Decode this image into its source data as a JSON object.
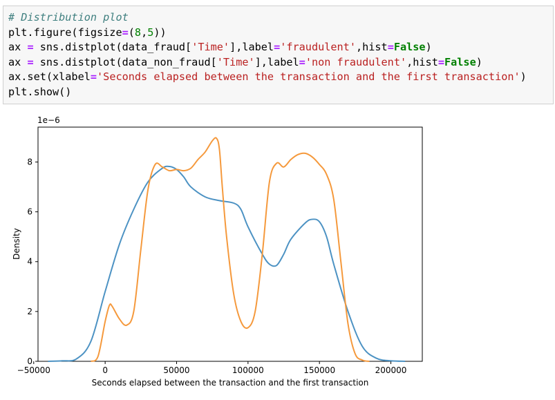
{
  "code_cell": {
    "lines": [
      [
        {
          "t": "# Distribution plot",
          "c": "comment"
        }
      ],
      [
        {
          "t": "plt.figure(figsize",
          "c": "plain"
        },
        {
          "t": "=",
          "c": "op"
        },
        {
          "t": "(",
          "c": "plain"
        },
        {
          "t": "8",
          "c": "num"
        },
        {
          "t": ",",
          "c": "plain"
        },
        {
          "t": "5",
          "c": "num"
        },
        {
          "t": "))",
          "c": "plain"
        }
      ],
      [
        {
          "t": "ax ",
          "c": "plain"
        },
        {
          "t": "=",
          "c": "op"
        },
        {
          "t": " sns.distplot(data_fraud[",
          "c": "plain"
        },
        {
          "t": "'Time'",
          "c": "str"
        },
        {
          "t": "],label",
          "c": "plain"
        },
        {
          "t": "=",
          "c": "op"
        },
        {
          "t": "'fraudulent'",
          "c": "str"
        },
        {
          "t": ",hist",
          "c": "plain"
        },
        {
          "t": "=",
          "c": "op"
        },
        {
          "t": "False",
          "c": "kw"
        },
        {
          "t": ")",
          "c": "plain"
        }
      ],
      [
        {
          "t": "ax ",
          "c": "plain"
        },
        {
          "t": "=",
          "c": "op"
        },
        {
          "t": " sns.distplot(data_non_fraud[",
          "c": "plain"
        },
        {
          "t": "'Time'",
          "c": "str"
        },
        {
          "t": "],label",
          "c": "plain"
        },
        {
          "t": "=",
          "c": "op"
        },
        {
          "t": "'non fraudulent'",
          "c": "str"
        },
        {
          "t": ",hist",
          "c": "plain"
        },
        {
          "t": "=",
          "c": "op"
        },
        {
          "t": "False",
          "c": "kw"
        },
        {
          "t": ")",
          "c": "plain"
        }
      ],
      [
        {
          "t": "ax.set(xlabel",
          "c": "plain"
        },
        {
          "t": "=",
          "c": "op"
        },
        {
          "t": "'Seconds elapsed between the transaction and the first transaction'",
          "c": "str"
        },
        {
          "t": ")",
          "c": "plain"
        }
      ],
      [
        {
          "t": "plt.show()",
          "c": "plain"
        }
      ]
    ]
  },
  "chart_data": {
    "type": "line",
    "xlabel": "Seconds elapsed between the transaction and the first transaction",
    "ylabel": "Density",
    "y_scale_label": "1e−6",
    "xlim": [
      -47000,
      222000
    ],
    "ylim": [
      0,
      9.4
    ],
    "xticks": [
      -50000,
      0,
      50000,
      100000,
      150000,
      200000
    ],
    "xtick_labels": [
      "−50000",
      "0",
      "50000",
      "100000",
      "150000",
      "200000"
    ],
    "yticks": [
      0,
      2,
      4,
      6,
      8
    ],
    "ytick_labels": [
      "0",
      "2",
      "4",
      "6",
      "8"
    ],
    "grid": false,
    "colors": {
      "series_1": "#4c92c3",
      "series_2": "#f5993c"
    },
    "series": [
      {
        "color": "#4c92c3",
        "x": [
          -40000,
          -30000,
          -20000,
          -10000,
          0,
          10000,
          20000,
          30000,
          40000,
          45000,
          50000,
          55000,
          60000,
          70000,
          80000,
          90000,
          95000,
          100000,
          110000,
          115000,
          120000,
          125000,
          130000,
          140000,
          145000,
          150000,
          155000,
          160000,
          170000,
          180000,
          190000,
          200000,
          210000
        ],
        "y": [
          0.0,
          0.02,
          0.1,
          0.8,
          2.8,
          4.7,
          6.1,
          7.2,
          7.75,
          7.82,
          7.7,
          7.4,
          7.0,
          6.6,
          6.45,
          6.35,
          6.1,
          5.4,
          4.3,
          3.9,
          3.85,
          4.3,
          4.9,
          5.55,
          5.7,
          5.6,
          5.0,
          3.9,
          2.0,
          0.6,
          0.12,
          0.02,
          0.0
        ]
      },
      {
        "color": "#f5993c",
        "x": [
          -10000,
          -5000,
          0,
          3000,
          5000,
          10000,
          15000,
          20000,
          25000,
          30000,
          35000,
          40000,
          45000,
          50000,
          55000,
          60000,
          65000,
          70000,
          75000,
          78000,
          80000,
          82000,
          85000,
          90000,
          95000,
          100000,
          105000,
          110000,
          115000,
          120000,
          125000,
          130000,
          135000,
          140000,
          145000,
          150000,
          155000,
          160000,
          165000,
          170000,
          175000,
          180000,
          185000
        ],
        "y": [
          0.0,
          0.2,
          1.6,
          2.25,
          2.2,
          1.7,
          1.45,
          2.0,
          4.5,
          6.9,
          7.9,
          7.8,
          7.65,
          7.7,
          7.65,
          7.75,
          8.1,
          8.4,
          8.85,
          8.95,
          8.5,
          7.0,
          5.0,
          2.7,
          1.6,
          1.35,
          2.0,
          4.3,
          7.2,
          7.95,
          7.8,
          8.1,
          8.3,
          8.35,
          8.2,
          7.9,
          7.5,
          6.5,
          4.0,
          1.5,
          0.3,
          0.05,
          0.0
        ]
      }
    ]
  }
}
